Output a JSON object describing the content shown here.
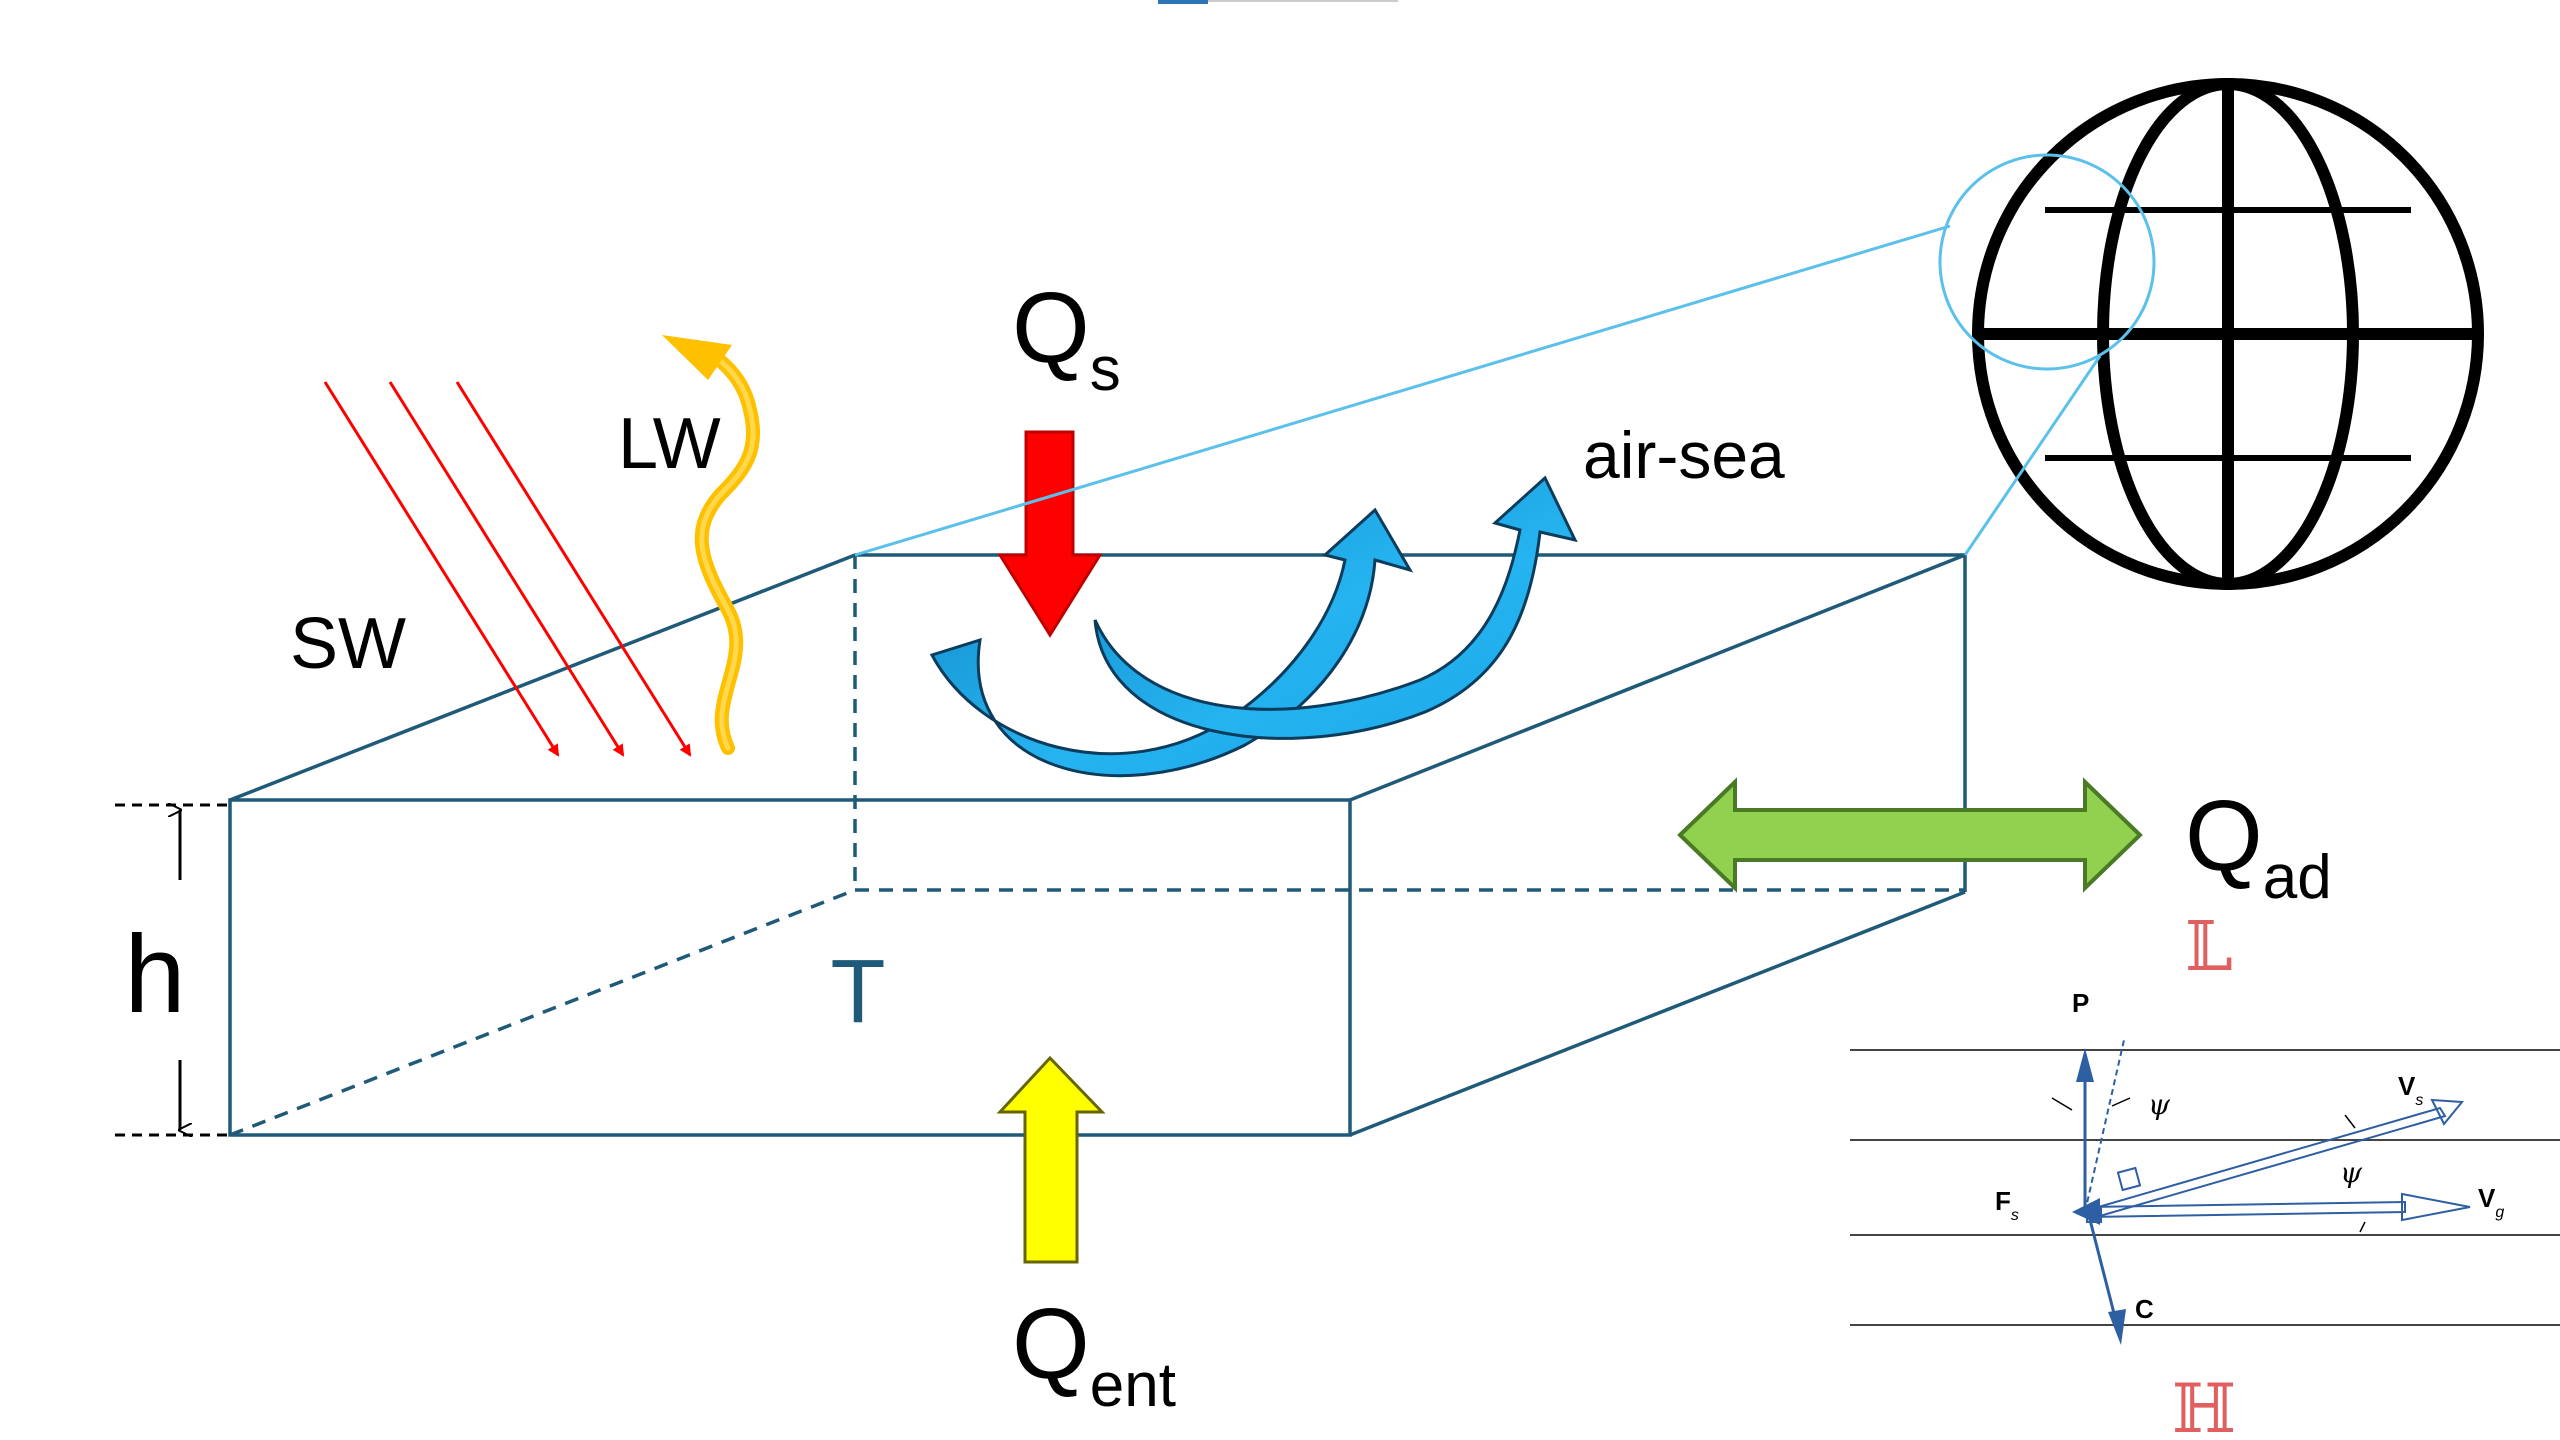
{
  "labels": {
    "sw": "SW",
    "lw": "LW",
    "qs_main": "Q",
    "qs_sub": "s",
    "airsea": "air-sea",
    "qad_main": "Q",
    "qad_sub": "ad",
    "h": "h",
    "t": "T",
    "qent_main": "Q",
    "qent_sub": "ent"
  },
  "inset": {
    "p": "P",
    "c": "C",
    "fs_main": "F",
    "fs_sub": "s",
    "vs_main": "V",
    "vs_sub": "s",
    "vg_main": "V",
    "vg_sub": "g",
    "psi": "ψ"
  },
  "symbols": {
    "l": "𝕃",
    "h": "ℍ"
  },
  "colors": {
    "box": "#1f5a78",
    "sw_arrows": "#ff0000",
    "lw_arrow": "#ffc000",
    "qs_arrow": "#ff0000",
    "qent_arrow": "#ffff00",
    "qad_arrow": "#92d050",
    "airsea_arrows": "#1aa6e8",
    "globe_lens": "#5bc0ea",
    "inset_vectors": "#2e5fa3",
    "symbol_red": "#e06060"
  },
  "icons": [
    "globe-icon"
  ]
}
